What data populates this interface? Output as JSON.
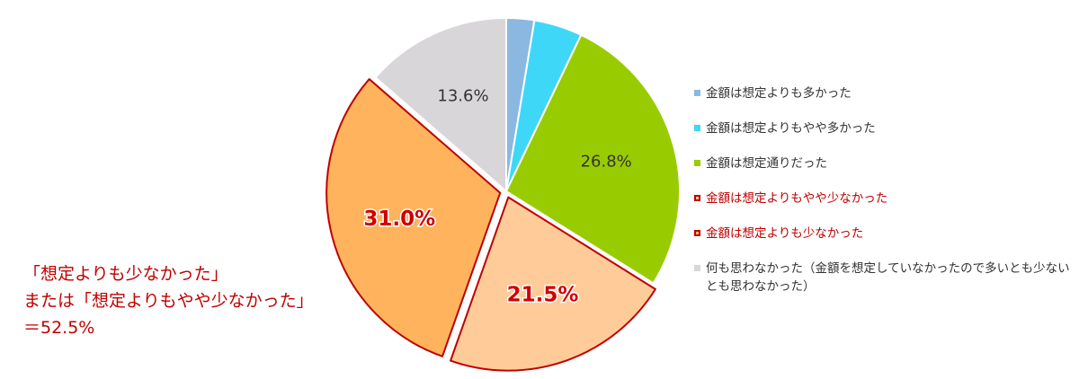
{
  "chart_data": {
    "type": "pie",
    "categories": [
      "金額は想定よりも多かった",
      "金額は想定よりもやや多かった",
      "金額は想定通りだった",
      "金額は想定よりもやや少なかった",
      "金額は想定よりも少なかった",
      "何も思わなかった（金額を想定していなかったので多いとも少ないとも思わなかった）"
    ],
    "values": [
      2.6,
      4.5,
      26.8,
      21.5,
      31.0,
      13.6
    ],
    "value_labels": [
      null,
      null,
      "26.8%",
      "21.5%",
      "31.0%",
      "13.6%"
    ],
    "colors": [
      "#8ab8e0",
      "#3fd7f7",
      "#99cc00",
      "#ffcc99",
      "#ffb35c",
      "#d9d6da"
    ],
    "highlight": [
      false,
      false,
      false,
      true,
      true,
      false
    ],
    "annotation": [
      "「想定よりも少なかった」",
      "または「想定よりもやや少なかった」",
      "＝52.5%"
    ]
  }
}
